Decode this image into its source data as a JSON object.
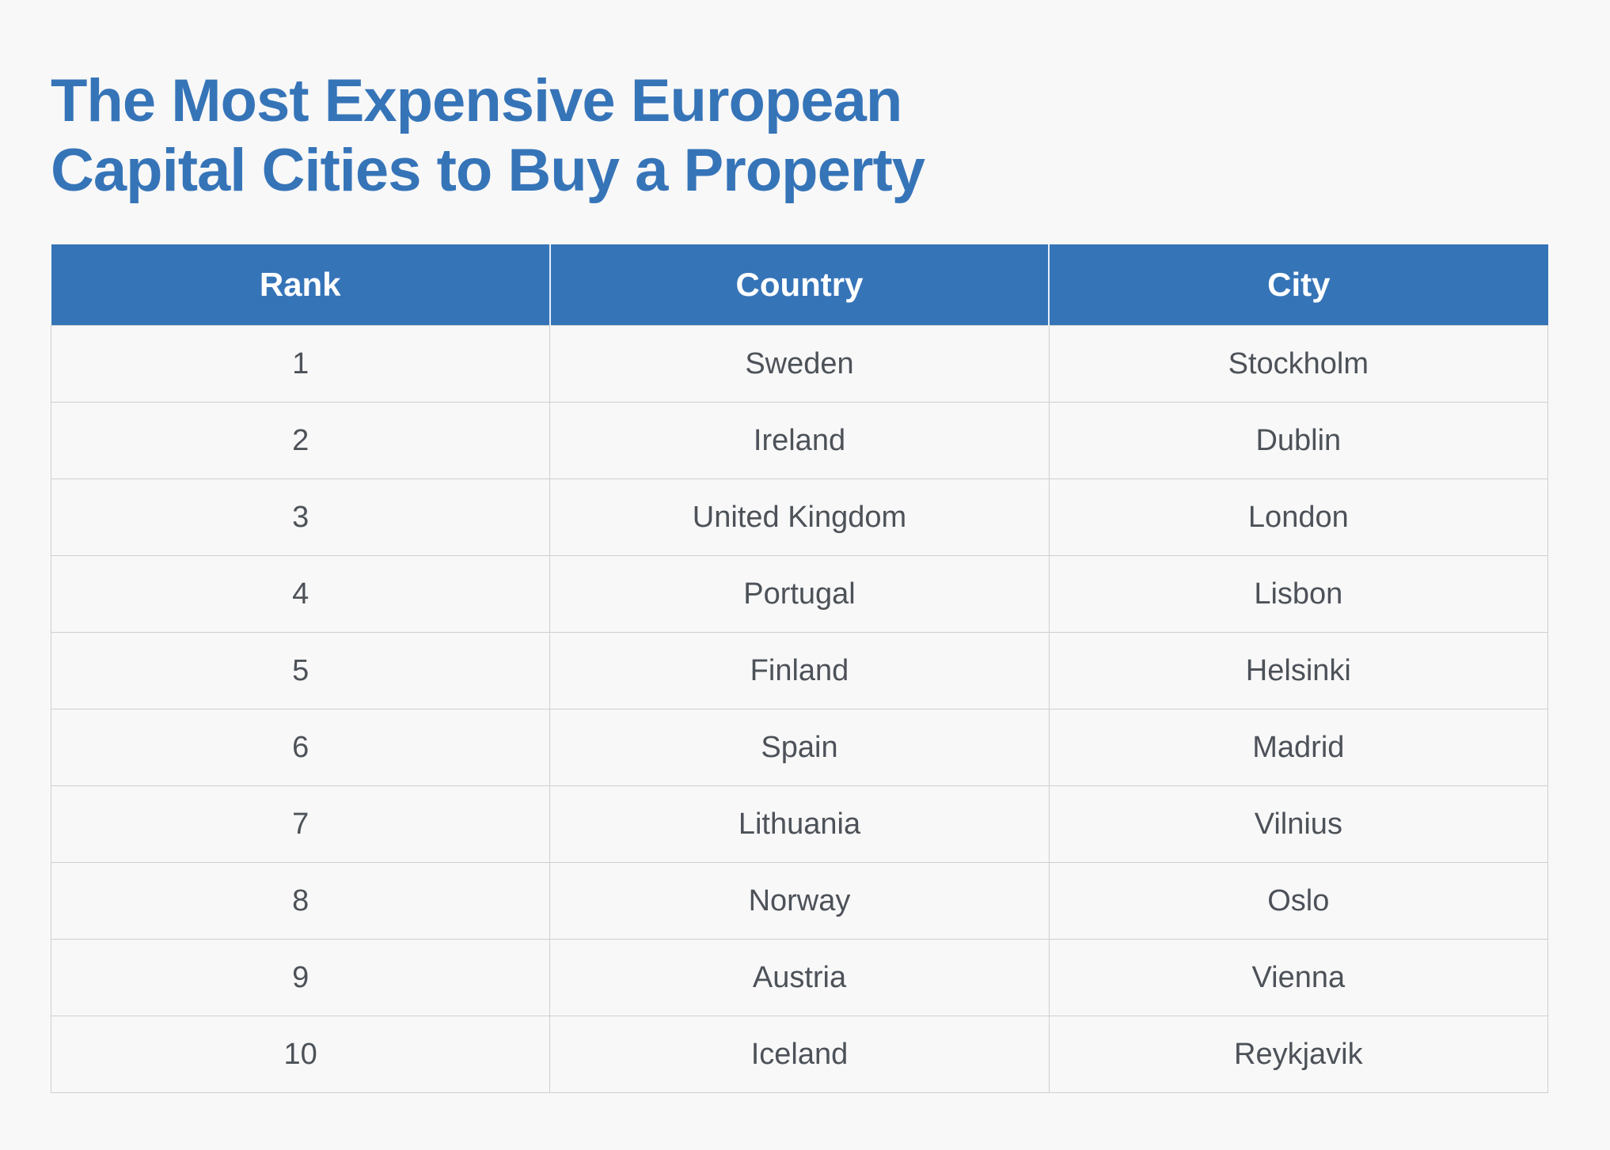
{
  "title_line1": "The Most Expensive European",
  "title_line2": "Capital Cities to Buy a Property",
  "columns": [
    "Rank",
    "Country",
    "City"
  ],
  "rows": [
    [
      "1",
      "Sweden",
      "Stockholm"
    ],
    [
      "2",
      "Ireland",
      "Dublin"
    ],
    [
      "3",
      "United Kingdom",
      "London"
    ],
    [
      "4",
      "Portugal",
      "Lisbon"
    ],
    [
      "5",
      "Finland",
      "Helsinki"
    ],
    [
      "6",
      "Spain",
      "Madrid"
    ],
    [
      "7",
      "Lithuania",
      "Vilnius"
    ],
    [
      "8",
      "Norway",
      "Oslo"
    ],
    [
      "9",
      "Austria",
      "Vienna"
    ],
    [
      "10",
      "Iceland",
      "Reykjavik"
    ]
  ],
  "colors": {
    "accent": "#3674b8",
    "background": "#f8f8f8",
    "text": "#4d5259"
  }
}
